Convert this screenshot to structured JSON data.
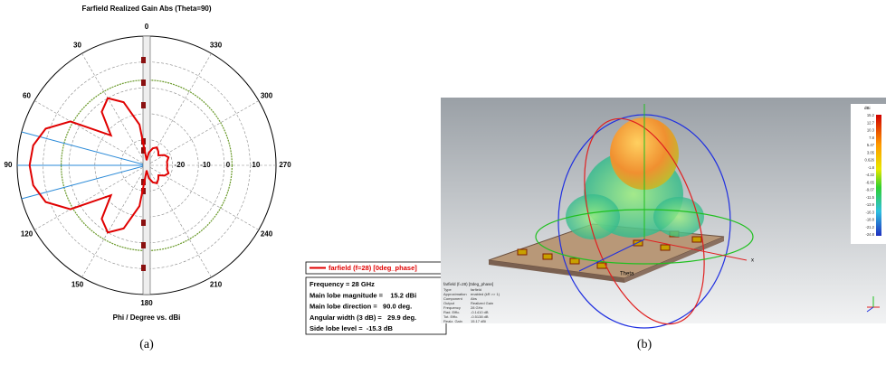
{
  "chart_data": {
    "type": "polar",
    "title": "Farfield Realized Gain Abs (Theta=90)",
    "axis_label": "Phi / Degree vs. dBi",
    "x": [
      0,
      10,
      20,
      30,
      40,
      50,
      60,
      70,
      80,
      90,
      100,
      110,
      120,
      130,
      140,
      150,
      160,
      170,
      180,
      190,
      200,
      210,
      220,
      230,
      240,
      250,
      260,
      270,
      280,
      290,
      300,
      310,
      320,
      330,
      340,
      350
    ],
    "series": [
      {
        "name": "farfield (f=28) [0deg_phase]",
        "color": "#e00000",
        "values": [
          -28,
          -14,
          -4,
          0,
          -3,
          -12,
          4,
          11.5,
          14.5,
          15.2,
          14.5,
          11.5,
          4,
          -12,
          -3,
          0,
          -4,
          -14,
          -28,
          -25,
          -23,
          -22,
          -23,
          -24,
          -22,
          -21,
          -22,
          -22,
          -22,
          -21,
          -22,
          -24,
          -23,
          -22,
          -23,
          -25
        ]
      }
    ],
    "rlim": [
      -30,
      20
    ],
    "rticks": [
      -20,
      -10,
      0,
      10
    ],
    "thetaticks": [
      0,
      30,
      60,
      90,
      120,
      150,
      180,
      210,
      240,
      270,
      300,
      330
    ],
    "reference_circle": 3,
    "color_reference": "#6a9a2a",
    "beam_lines": [
      75,
      90,
      105
    ],
    "color_beam": "#2a8ad8",
    "info": [
      "Frequency = 28 GHz",
      "Main lobe magnitude =    15.2 dBi",
      "Main lobe direction =   90.0 deg.",
      "Angular width (3 dB) =   29.9 deg.",
      "Side lobe level =  -15.3 dB"
    ]
  },
  "render": {
    "colorbar_title": "dBi",
    "colorbar_ticks": [
      "15.2",
      "12.7",
      "10.3",
      "7.8",
      "5.47",
      "3.05",
      "0.626",
      "-1.8",
      "-4.22",
      "-6.65",
      "-9.07",
      "-11.5",
      "-13.9",
      "-16.3",
      "-18.8",
      "-21.2",
      "-24.8"
    ],
    "info_title": "farfield (f=28) [0deg_phase]",
    "info_rows": [
      [
        "Type",
        "farfield"
      ],
      [
        "Approximation",
        "enabled (kR >> 1)"
      ],
      [
        "Component",
        "Abs"
      ],
      [
        "Output",
        "Realized Gain"
      ],
      [
        "Frequency",
        "28 GHz"
      ],
      [
        "Rad. Effic.",
        "-0.1410 dB"
      ],
      [
        "Tot. Effic.",
        "-0.5138 dB"
      ],
      [
        "Realz. Gain",
        "15.17 dBi"
      ]
    ],
    "axis_theta": "Theta",
    "axis_x": "x"
  },
  "captions": [
    "(a)",
    "(b)"
  ]
}
